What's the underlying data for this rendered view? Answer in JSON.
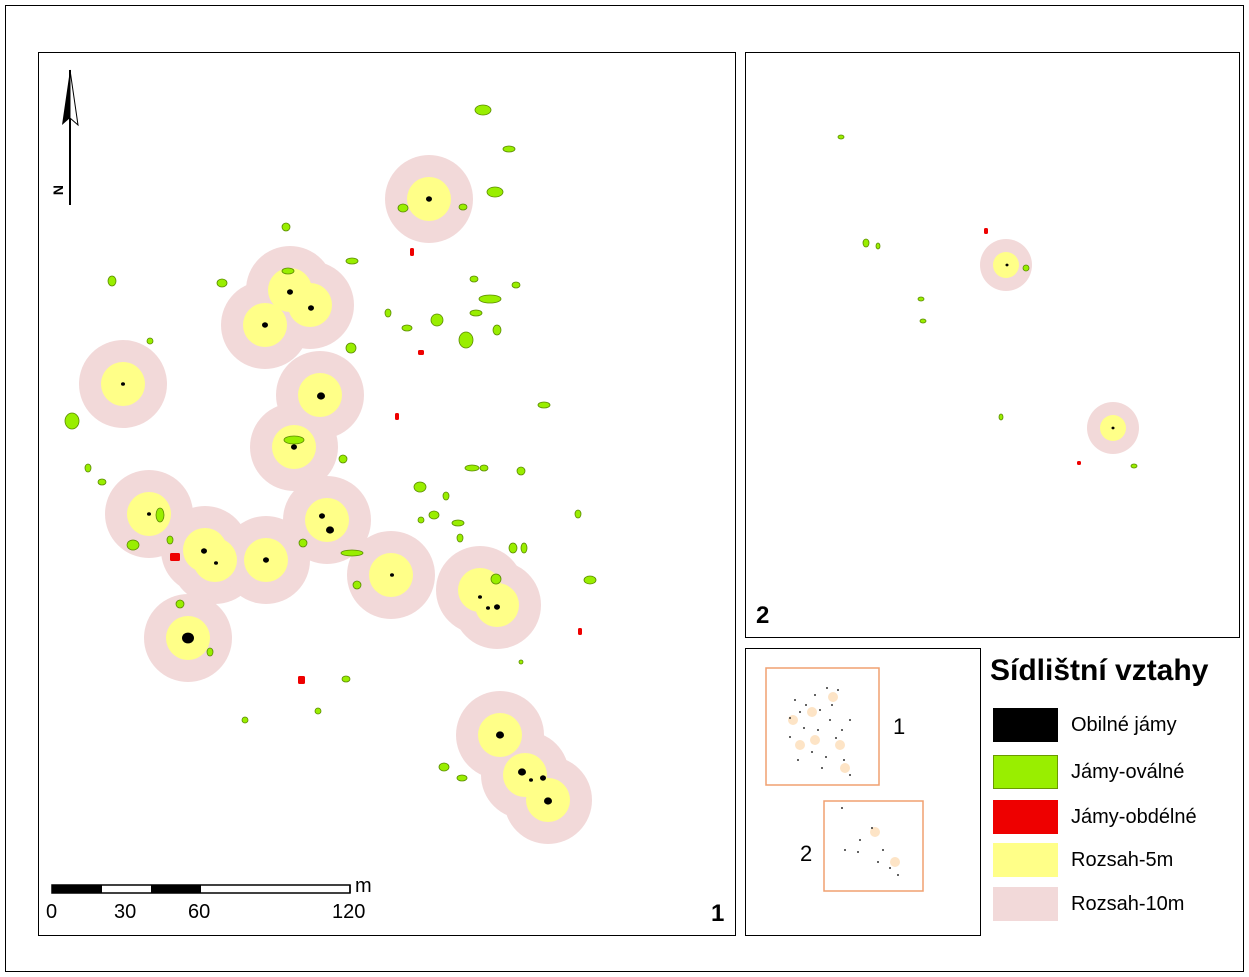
{
  "panels": {
    "main_number": "1",
    "inset_number": "2"
  },
  "north_arrow": {
    "label": "N"
  },
  "scale_bar": {
    "unit": "m",
    "ticks": [
      "0",
      "30",
      "60",
      "120"
    ]
  },
  "overview": {
    "label_1": "1",
    "label_2": "2"
  },
  "legend": {
    "title": "Sídlištní vztahy",
    "items": [
      {
        "label": "Obilné jámy",
        "color": "#000000"
      },
      {
        "label": "Jámy-oválné",
        "color": "#99ee00"
      },
      {
        "label": "Jámy-obdélné",
        "color": "#ee0000"
      },
      {
        "label": "Rozsah-5m",
        "color": "#ffff88"
      },
      {
        "label": "Rozsah-10m",
        "color": "#f2d9d9"
      }
    ]
  },
  "colors": {
    "grain_pit": "#000000",
    "oval_pit": "#99ee00",
    "rect_pit": "#ee0000",
    "buffer_5m": "#ffff88",
    "buffer_10m": "#f2d9d9",
    "overview_frame": "#f0a070"
  }
}
